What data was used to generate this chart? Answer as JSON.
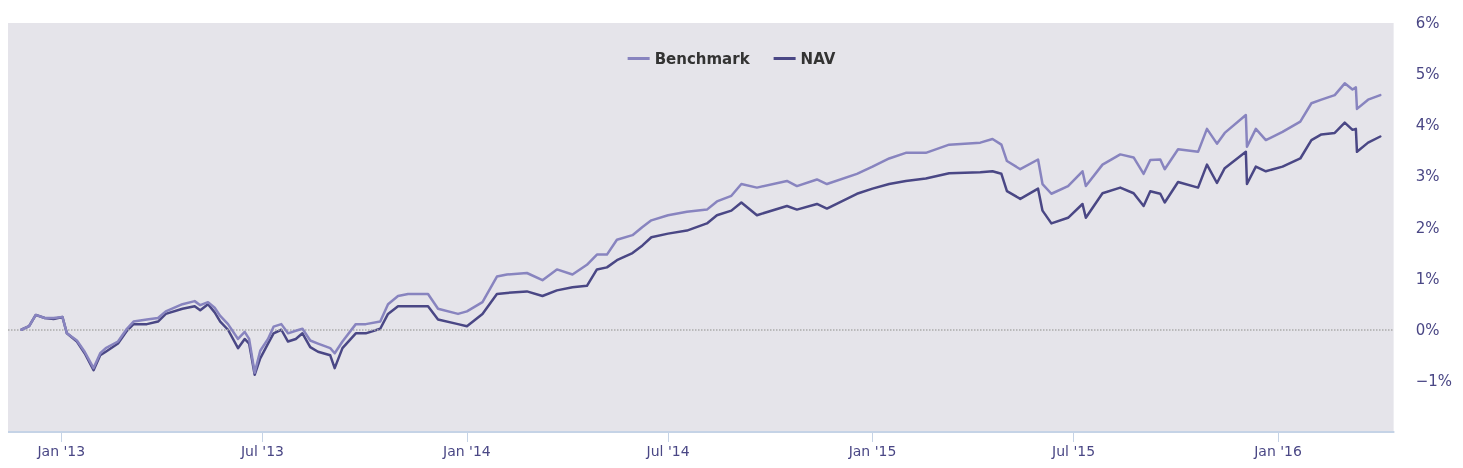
{
  "chart_data": {
    "type": "line",
    "legend": "top",
    "grid": false,
    "marker": "none",
    "line_style": "solid",
    "xlim": [
      "2012-11-14",
      "2016-04-14"
    ],
    "xticks": [
      {
        "value": "2013-01-01",
        "label": "Jan '13"
      },
      {
        "value": "2013-07-01",
        "label": "Jul '13"
      },
      {
        "value": "2014-01-01",
        "label": "Jan '14"
      },
      {
        "value": "2014-07-01",
        "label": "Jul '14"
      },
      {
        "value": "2015-01-01",
        "label": "Jan '15"
      },
      {
        "value": "2015-07-01",
        "label": "Jul '15"
      },
      {
        "value": "2016-01-01",
        "label": "Jan '16"
      }
    ],
    "ylim": [
      -2,
      6
    ],
    "yticks": [
      {
        "value": -1,
        "label": "−1%"
      },
      {
        "value": 0,
        "label": "0%"
      },
      {
        "value": 1,
        "label": "1%"
      },
      {
        "value": 2,
        "label": "2%"
      },
      {
        "value": 3,
        "label": "3%"
      },
      {
        "value": 4,
        "label": "4%"
      },
      {
        "value": 5,
        "label": "5%"
      },
      {
        "value": 6,
        "label": "6%"
      }
    ],
    "ref_lines": [
      {
        "axis": "y",
        "value": 0,
        "color": "#aaaaaa",
        "line_style": "dotted"
      }
    ],
    "x": [
      "2012-11-26",
      "2012-12-03",
      "2012-12-09",
      "2012-12-17",
      "2012-12-25",
      "2013-01-02",
      "2013-01-06",
      "2013-01-15",
      "2013-01-22",
      "2013-01-30",
      "2013-02-05",
      "2013-02-10",
      "2013-02-21",
      "2013-03-01",
      "2013-03-07",
      "2013-03-19",
      "2013-03-29",
      "2013-04-05",
      "2013-04-20",
      "2013-05-01",
      "2013-05-06",
      "2013-05-13",
      "2013-05-19",
      "2013-05-24",
      "2013-05-31",
      "2013-06-09",
      "2013-06-15",
      "2013-06-19",
      "2013-06-24",
      "2013-06-29",
      "2013-07-06",
      "2013-07-11",
      "2013-07-18",
      "2013-07-24",
      "2013-07-31",
      "2013-08-06",
      "2013-08-13",
      "2013-08-20",
      "2013-08-31",
      "2013-09-04",
      "2013-09-11",
      "2013-09-23",
      "2013-10-02",
      "2013-10-15",
      "2013-10-22",
      "2013-10-31",
      "2013-11-09",
      "2013-11-27",
      "2013-12-06",
      "2013-12-24",
      "2014-01-01",
      "2014-01-15",
      "2014-01-28",
      "2014-02-06",
      "2014-02-24",
      "2014-03-10",
      "2014-03-23",
      "2014-04-06",
      "2014-04-19",
      "2014-04-28",
      "2014-05-07",
      "2014-05-16",
      "2014-05-30",
      "2014-06-08",
      "2014-06-16",
      "2014-07-01",
      "2014-07-18",
      "2014-08-05",
      "2014-08-14",
      "2014-08-27",
      "2014-09-05",
      "2014-09-19",
      "2014-10-16",
      "2014-10-25",
      "2014-11-12",
      "2014-11-21",
      "2014-12-18",
      "2015-01-01",
      "2015-01-16",
      "2015-01-31",
      "2015-02-18",
      "2015-03-11",
      "2015-04-08",
      "2015-04-19",
      "2015-04-27",
      "2015-05-02",
      "2015-05-14",
      "2015-05-30",
      "2015-06-03",
      "2015-06-11",
      "2015-06-26",
      "2015-07-09",
      "2015-07-12",
      "2015-07-27",
      "2015-08-12",
      "2015-08-24",
      "2015-09-02",
      "2015-09-08",
      "2015-09-17",
      "2015-09-21",
      "2015-10-03",
      "2015-10-21",
      "2015-10-29",
      "2015-11-07",
      "2015-11-14",
      "2015-12-03",
      "2015-12-04",
      "2015-12-12",
      "2015-12-21",
      "2016-01-05",
      "2016-01-21",
      "2016-01-31",
      "2016-02-09",
      "2016-02-21",
      "2016-03-01",
      "2016-03-08",
      "2016-03-11",
      "2016-03-12",
      "2016-03-22",
      "2016-04-02"
    ],
    "series": [
      {
        "name": "Benchmark",
        "color": "#8884bf",
        "values": [
          0,
          0.07,
          0.29,
          0.23,
          0.23,
          0.25,
          -0.07,
          -0.21,
          -0.43,
          -0.75,
          -0.46,
          -0.36,
          -0.23,
          0.02,
          0.16,
          0.2,
          0.23,
          0.36,
          0.5,
          0.56,
          0.48,
          0.54,
          0.43,
          0.27,
          0.11,
          -0.18,
          -0.04,
          -0.18,
          -0.84,
          -0.41,
          -0.18,
          0.06,
          0.11,
          -0.07,
          -0.02,
          0.02,
          -0.21,
          -0.27,
          -0.36,
          -0.46,
          -0.23,
          0.11,
          0.11,
          0.16,
          0.5,
          0.66,
          0.7,
          0.7,
          0.41,
          0.31,
          0.36,
          0.54,
          1.04,
          1.08,
          1.11,
          0.97,
          1.18,
          1.08,
          1.27,
          1.47,
          1.47,
          1.76,
          1.85,
          2.01,
          2.14,
          2.24,
          2.31,
          2.35,
          2.51,
          2.62,
          2.85,
          2.78,
          2.91,
          2.81,
          2.94,
          2.85,
          3.05,
          3.19,
          3.35,
          3.46,
          3.46,
          3.62,
          3.66,
          3.73,
          3.62,
          3.3,
          3.14,
          3.33,
          2.85,
          2.66,
          2.81,
          3.1,
          2.81,
          3.23,
          3.43,
          3.37,
          3.05,
          3.32,
          3.33,
          3.14,
          3.53,
          3.48,
          3.93,
          3.64,
          3.85,
          4.2,
          3.58,
          3.93,
          3.71,
          3.87,
          4.07,
          4.43,
          4.5,
          4.59,
          4.82,
          4.7,
          4.74,
          4.32,
          4.5,
          4.59
        ]
      },
      {
        "name": "NAV",
        "color": "#4a4785",
        "values": [
          0,
          0.07,
          0.29,
          0.23,
          0.21,
          0.25,
          -0.07,
          -0.23,
          -0.46,
          -0.79,
          -0.5,
          -0.43,
          -0.27,
          -0.02,
          0.11,
          0.11,
          0.16,
          0.31,
          0.41,
          0.46,
          0.38,
          0.5,
          0.34,
          0.16,
          0,
          -0.36,
          -0.18,
          -0.27,
          -0.88,
          -0.56,
          -0.27,
          -0.07,
          0,
          -0.23,
          -0.18,
          -0.07,
          -0.34,
          -0.43,
          -0.5,
          -0.75,
          -0.36,
          -0.07,
          -0.07,
          0.02,
          0.31,
          0.46,
          0.46,
          0.46,
          0.2,
          0.11,
          0.07,
          0.31,
          0.7,
          0.72,
          0.75,
          0.66,
          0.77,
          0.83,
          0.86,
          1.18,
          1.22,
          1.36,
          1.5,
          1.65,
          1.81,
          1.88,
          1.94,
          2.08,
          2.24,
          2.33,
          2.49,
          2.24,
          2.42,
          2.35,
          2.46,
          2.37,
          2.66,
          2.76,
          2.85,
          2.91,
          2.96,
          3.06,
          3.08,
          3.1,
          3.05,
          2.71,
          2.56,
          2.76,
          2.33,
          2.08,
          2.19,
          2.46,
          2.19,
          2.67,
          2.78,
          2.67,
          2.42,
          2.71,
          2.66,
          2.49,
          2.89,
          2.78,
          3.23,
          2.87,
          3.16,
          3.48,
          2.85,
          3.19,
          3.1,
          3.19,
          3.35,
          3.71,
          3.82,
          3.85,
          4.05,
          3.91,
          3.93,
          3.48,
          3.66,
          3.78
        ]
      }
    ]
  }
}
